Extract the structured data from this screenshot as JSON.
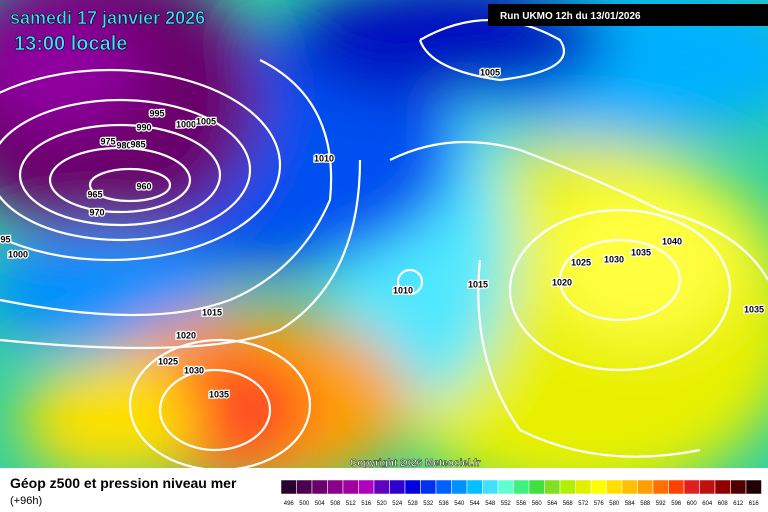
{
  "header": {
    "date": "samedi 17 janvier 2026",
    "time": "13:00 locale",
    "run": "Run UKMO 12h du 13/01/2026"
  },
  "footer": {
    "title": "Géop z500 et pression niveau mer",
    "lead": "(+96h)",
    "copyright": "Copyright 2026 Meteociel.fr"
  },
  "isobar_labels": [
    "995",
    "990",
    "1000",
    "1005",
    "975",
    "980",
    "985",
    "960",
    "965",
    "970",
    "995",
    "1000",
    "1005",
    "1010",
    "1010",
    "1015",
    "1015",
    "1020",
    "1025",
    "1030",
    "1035",
    "1025",
    "1030",
    "1035",
    "1040",
    "1020",
    "1035"
  ],
  "scale": [
    {
      "label": "496",
      "color": "#2a0030"
    },
    {
      "label": "500",
      "color": "#4b0050"
    },
    {
      "label": "504",
      "color": "#6a006a"
    },
    {
      "label": "508",
      "color": "#8a008a"
    },
    {
      "label": "512",
      "color": "#a000a0"
    },
    {
      "label": "516",
      "color": "#b000c0"
    },
    {
      "label": "520",
      "color": "#6000c0"
    },
    {
      "label": "524",
      "color": "#3000d0"
    },
    {
      "label": "528",
      "color": "#0000e0"
    },
    {
      "label": "532",
      "color": "#0030f0"
    },
    {
      "label": "536",
      "color": "#0060ff"
    },
    {
      "label": "540",
      "color": "#0090ff"
    },
    {
      "label": "544",
      "color": "#00c0ff"
    },
    {
      "label": "548",
      "color": "#40e0ff"
    },
    {
      "label": "552",
      "color": "#60ffd0"
    },
    {
      "label": "556",
      "color": "#40f080"
    },
    {
      "label": "560",
      "color": "#40e040"
    },
    {
      "label": "564",
      "color": "#80e020"
    },
    {
      "label": "568",
      "color": "#b0f000"
    },
    {
      "label": "572",
      "color": "#e0f000"
    },
    {
      "label": "576",
      "color": "#ffff00"
    },
    {
      "label": "580",
      "color": "#ffe000"
    },
    {
      "label": "584",
      "color": "#ffc000"
    },
    {
      "label": "588",
      "color": "#ffa000"
    },
    {
      "label": "592",
      "color": "#ff7000"
    },
    {
      "label": "596",
      "color": "#ff4000"
    },
    {
      "label": "600",
      "color": "#e02020"
    },
    {
      "label": "604",
      "color": "#c01010"
    },
    {
      "label": "608",
      "color": "#900000"
    },
    {
      "label": "612",
      "color": "#500000"
    },
    {
      "label": "616",
      "color": "#200000"
    }
  ]
}
